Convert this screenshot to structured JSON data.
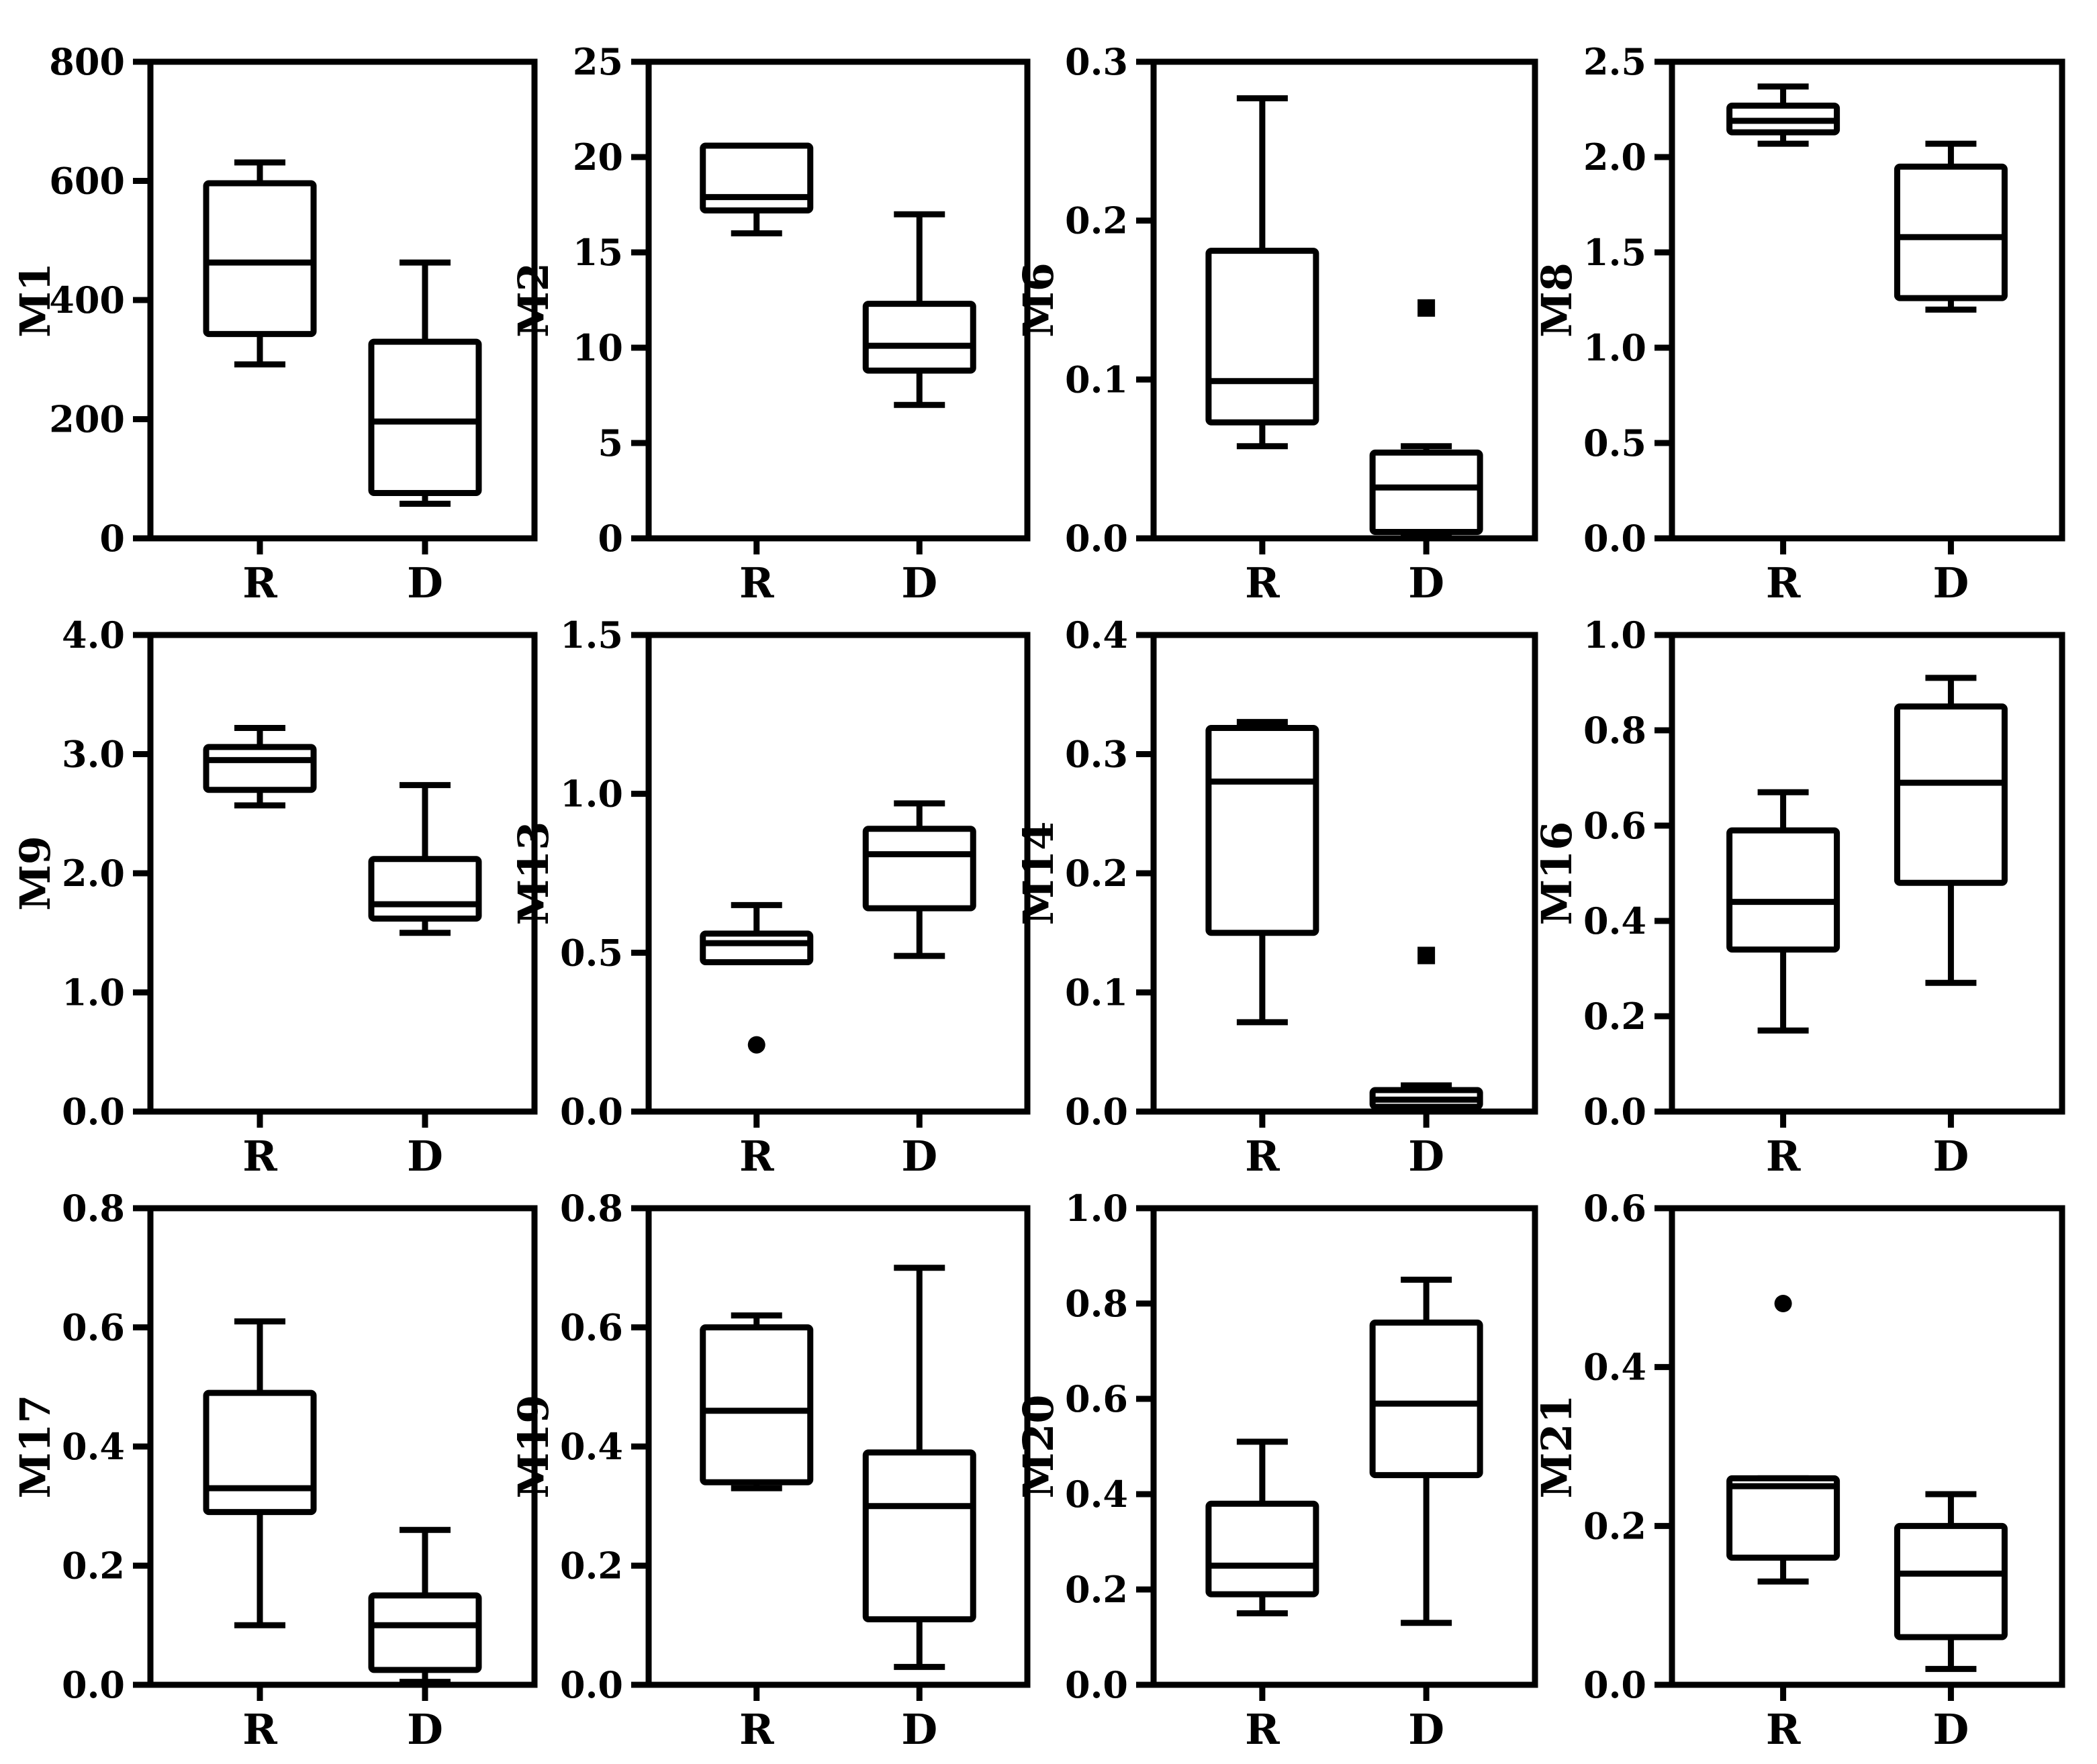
{
  "chart_data": [
    {
      "type": "box",
      "ylabel": "M1",
      "ylim": [
        0,
        800
      ],
      "yticks": [
        "0",
        "200",
        "400",
        "600",
        "800"
      ],
      "categories": [
        "R",
        "D"
      ],
      "boxes": [
        {
          "category": "R",
          "min": 292,
          "q1": 343,
          "median": 463,
          "q3": 596,
          "max": 631,
          "outliers": []
        },
        {
          "category": "D",
          "min": 58,
          "q1": 76,
          "median": 196,
          "q3": 330,
          "max": 463,
          "outliers": []
        }
      ]
    },
    {
      "type": "box",
      "ylabel": "M2",
      "ylim": [
        0,
        25
      ],
      "yticks": [
        "0",
        "5",
        "10",
        "15",
        "20",
        "25"
      ],
      "categories": [
        "R",
        "D"
      ],
      "boxes": [
        {
          "category": "R",
          "min": 16.0,
          "q1": 17.2,
          "median": 17.9,
          "q3": 20.6,
          "max": 20.6,
          "outliers": []
        },
        {
          "category": "D",
          "min": 7.0,
          "q1": 8.8,
          "median": 10.1,
          "q3": 12.3,
          "max": 17.0,
          "outliers": []
        }
      ]
    },
    {
      "type": "box",
      "ylabel": "M6",
      "ylim": [
        0,
        0.3
      ],
      "yticks": [
        "0.0",
        "0.1",
        "0.2",
        "0.3"
      ],
      "categories": [
        "R",
        "D"
      ],
      "boxes": [
        {
          "category": "R",
          "min": 0.058,
          "q1": 0.073,
          "median": 0.099,
          "q3": 0.181,
          "max": 0.277,
          "outliers": []
        },
        {
          "category": "D",
          "min": 0.003,
          "q1": 0.004,
          "median": 0.032,
          "q3": 0.054,
          "max": 0.058,
          "outliers": [
            0.145
          ]
        }
      ]
    },
    {
      "type": "box",
      "ylabel": "M8",
      "ylim": [
        0,
        2.5
      ],
      "yticks": [
        "0.0",
        "0.5",
        "1.0",
        "1.5",
        "2.0",
        "2.5"
      ],
      "categories": [
        "R",
        "D"
      ],
      "boxes": [
        {
          "category": "R",
          "min": 2.07,
          "q1": 2.13,
          "median": 2.19,
          "q3": 2.27,
          "max": 2.37,
          "outliers": []
        },
        {
          "category": "D",
          "min": 1.2,
          "q1": 1.26,
          "median": 1.58,
          "q3": 1.95,
          "max": 2.07,
          "outliers": []
        }
      ]
    },
    {
      "type": "box",
      "ylabel": "M9",
      "ylim": [
        0,
        4.0
      ],
      "yticks": [
        "0.0",
        "1.0",
        "2.0",
        "3.0",
        "4.0"
      ],
      "categories": [
        "R",
        "D"
      ],
      "boxes": [
        {
          "category": "R",
          "min": 2.57,
          "q1": 2.7,
          "median": 2.95,
          "q3": 3.06,
          "max": 3.22,
          "outliers": []
        },
        {
          "category": "D",
          "min": 1.5,
          "q1": 1.62,
          "median": 1.74,
          "q3": 2.12,
          "max": 2.74,
          "outliers": []
        }
      ]
    },
    {
      "type": "box",
      "ylabel": "M13",
      "ylim": [
        0,
        1.5
      ],
      "yticks": [
        "0.0",
        "0.5",
        "1.0",
        "1.5"
      ],
      "categories": [
        "R",
        "D"
      ],
      "boxes": [
        {
          "category": "R",
          "min": 0.47,
          "q1": 0.47,
          "median": 0.53,
          "q3": 0.56,
          "max": 0.65,
          "outliers": [
            0.21
          ]
        },
        {
          "category": "D",
          "min": 0.49,
          "q1": 0.64,
          "median": 0.81,
          "q3": 0.89,
          "max": 0.97,
          "outliers": []
        }
      ]
    },
    {
      "type": "box",
      "ylabel": "M14",
      "ylim": [
        0,
        0.4
      ],
      "yticks": [
        "0.0",
        "0.1",
        "0.2",
        "0.3",
        "0.4"
      ],
      "categories": [
        "R",
        "D"
      ],
      "boxes": [
        {
          "category": "R",
          "min": 0.075,
          "q1": 0.15,
          "median": 0.277,
          "q3": 0.322,
          "max": 0.327,
          "outliers": []
        },
        {
          "category": "D",
          "min": 0.002,
          "q1": 0.004,
          "median": 0.01,
          "q3": 0.018,
          "max": 0.022,
          "outliers": [
            0.131
          ]
        }
      ]
    },
    {
      "type": "box",
      "ylabel": "M16",
      "ylim": [
        0,
        1.0
      ],
      "yticks": [
        "0.0",
        "0.2",
        "0.4",
        "0.6",
        "0.8",
        "1.0"
      ],
      "categories": [
        "R",
        "D"
      ],
      "boxes": [
        {
          "category": "R",
          "min": 0.17,
          "q1": 0.34,
          "median": 0.44,
          "q3": 0.59,
          "max": 0.67,
          "outliers": []
        },
        {
          "category": "D",
          "min": 0.27,
          "q1": 0.48,
          "median": 0.69,
          "q3": 0.85,
          "max": 0.91,
          "outliers": []
        }
      ]
    },
    {
      "type": "box",
      "ylabel": "M17",
      "ylim": [
        0,
        0.8
      ],
      "yticks": [
        "0.0",
        "0.2",
        "0.4",
        "0.6",
        "0.8"
      ],
      "categories": [
        "R",
        "D"
      ],
      "boxes": [
        {
          "category": "R",
          "min": 0.1,
          "q1": 0.29,
          "median": 0.33,
          "q3": 0.49,
          "max": 0.61,
          "outliers": []
        },
        {
          "category": "D",
          "min": 0.005,
          "q1": 0.025,
          "median": 0.1,
          "q3": 0.15,
          "max": 0.26,
          "outliers": []
        }
      ]
    },
    {
      "type": "box",
      "ylabel": "M19",
      "ylim": [
        0,
        0.8
      ],
      "yticks": [
        "0.0",
        "0.2",
        "0.4",
        "0.6",
        "0.8"
      ],
      "categories": [
        "R",
        "D"
      ],
      "boxes": [
        {
          "category": "R",
          "min": 0.33,
          "q1": 0.34,
          "median": 0.46,
          "q3": 0.6,
          "max": 0.62,
          "outliers": []
        },
        {
          "category": "D",
          "min": 0.03,
          "q1": 0.11,
          "median": 0.3,
          "q3": 0.39,
          "max": 0.7,
          "outliers": []
        }
      ]
    },
    {
      "type": "box",
      "ylabel": "M20",
      "ylim": [
        0,
        1.0
      ],
      "yticks": [
        "0.0",
        "0.2",
        "0.4",
        "0.6",
        "0.8",
        "1.0"
      ],
      "categories": [
        "R",
        "D"
      ],
      "boxes": [
        {
          "category": "R",
          "min": 0.15,
          "q1": 0.19,
          "median": 0.25,
          "q3": 0.38,
          "max": 0.51,
          "outliers": []
        },
        {
          "category": "D",
          "min": 0.13,
          "q1": 0.44,
          "median": 0.59,
          "q3": 0.76,
          "max": 0.85,
          "outliers": []
        }
      ]
    },
    {
      "type": "box",
      "ylabel": "M21",
      "ylim": [
        0,
        0.6
      ],
      "yticks": [
        "0.0",
        "0.2",
        "0.4",
        "0.6"
      ],
      "categories": [
        "R",
        "D"
      ],
      "boxes": [
        {
          "category": "R",
          "min": 0.13,
          "q1": 0.16,
          "median": 0.25,
          "q3": 0.26,
          "max": 0.26,
          "outliers": [
            0.48
          ]
        },
        {
          "category": "D",
          "min": 0.02,
          "q1": 0.06,
          "median": 0.14,
          "q3": 0.2,
          "max": 0.24,
          "outliers": []
        }
      ]
    }
  ]
}
